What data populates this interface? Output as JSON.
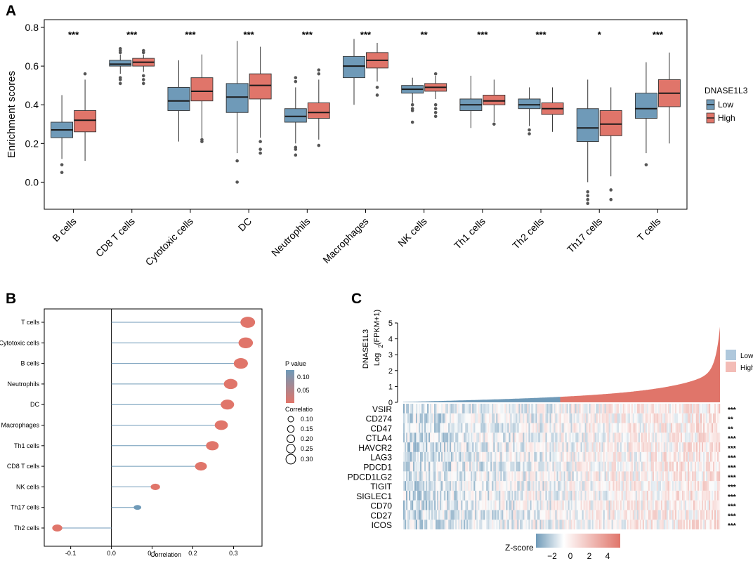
{
  "panel_labels": {
    "a": "A",
    "b": "B",
    "c": "C"
  },
  "chart_data": [
    {
      "panel": "A",
      "type": "box",
      "ylabel": "Enrichment scores",
      "ylim": [
        -0.14,
        0.84
      ],
      "yticks": [
        0.0,
        0.2,
        0.4,
        0.6,
        0.8
      ],
      "ytick_labels": [
        "0.0",
        "0.2",
        "0.4",
        "0.6",
        "0.8"
      ],
      "legend_title": "DNASE1L3",
      "legend_position": "right",
      "groups": [
        {
          "name": "Low",
          "color": "#6F9AB8"
        },
        {
          "name": "High",
          "color": "#E0756A"
        }
      ],
      "categories": [
        "B cells",
        "CD8 T cells",
        "Cytotoxic cells",
        "DC",
        "Neutrophils",
        "Macrophages",
        "NK cells",
        "Th1 cells",
        "Th2 cells",
        "Th17 cells",
        "T cells"
      ],
      "significance": [
        "***",
        "***",
        "***",
        "***",
        "***",
        "***",
        "**",
        "***",
        "***",
        "*",
        "***"
      ],
      "boxes": [
        {
          "low": {
            "q1": 0.23,
            "median": 0.27,
            "q3": 0.31,
            "wlo": 0.12,
            "whi": 0.45,
            "out": [
              0.09,
              0.05
            ]
          },
          "high": {
            "q1": 0.26,
            "median": 0.32,
            "q3": 0.37,
            "wlo": 0.11,
            "whi": 0.53,
            "out": [
              0.56
            ]
          }
        },
        {
          "low": {
            "q1": 0.6,
            "median": 0.61,
            "q3": 0.63,
            "wlo": 0.56,
            "whi": 0.66,
            "out": [
              0.69,
              0.68,
              0.67,
              0.54,
              0.53,
              0.51
            ]
          },
          "high": {
            "q1": 0.6,
            "median": 0.62,
            "q3": 0.64,
            "wlo": 0.57,
            "whi": 0.66,
            "out": [
              0.68,
              0.67,
              0.55,
              0.53,
              0.51
            ]
          }
        },
        {
          "low": {
            "q1": 0.37,
            "median": 0.42,
            "q3": 0.49,
            "wlo": 0.21,
            "whi": 0.63,
            "out": []
          },
          "high": {
            "q1": 0.42,
            "median": 0.47,
            "q3": 0.54,
            "wlo": 0.23,
            "whi": 0.66,
            "out": [
              0.22,
              0.21
            ]
          }
        },
        {
          "low": {
            "q1": 0.36,
            "median": 0.44,
            "q3": 0.51,
            "wlo": 0.15,
            "whi": 0.73,
            "out": [
              0.11,
              0.0
            ]
          },
          "high": {
            "q1": 0.43,
            "median": 0.5,
            "q3": 0.56,
            "wlo": 0.23,
            "whi": 0.7,
            "out": [
              0.21,
              0.17,
              0.15
            ]
          }
        },
        {
          "low": {
            "q1": 0.31,
            "median": 0.34,
            "q3": 0.38,
            "wlo": 0.2,
            "whi": 0.49,
            "out": [
              0.54,
              0.52,
              0.18,
              0.17,
              0.14
            ]
          },
          "high": {
            "q1": 0.33,
            "median": 0.36,
            "q3": 0.41,
            "wlo": 0.22,
            "whi": 0.53,
            "out": [
              0.58,
              0.56,
              0.19
            ]
          }
        },
        {
          "low": {
            "q1": 0.54,
            "median": 0.6,
            "q3": 0.65,
            "wlo": 0.4,
            "whi": 0.74,
            "out": []
          },
          "high": {
            "q1": 0.59,
            "median": 0.63,
            "q3": 0.67,
            "wlo": 0.52,
            "whi": 0.72,
            "out": [
              0.49,
              0.45
            ]
          }
        },
        {
          "low": {
            "q1": 0.46,
            "median": 0.48,
            "q3": 0.5,
            "wlo": 0.41,
            "whi": 0.54,
            "out": [
              0.4,
              0.38,
              0.37,
              0.31
            ]
          },
          "high": {
            "q1": 0.47,
            "median": 0.49,
            "q3": 0.51,
            "wlo": 0.43,
            "whi": 0.55,
            "out": [
              0.56,
              0.4,
              0.38,
              0.36,
              0.34
            ]
          }
        },
        {
          "low": {
            "q1": 0.37,
            "median": 0.4,
            "q3": 0.43,
            "wlo": 0.28,
            "whi": 0.55,
            "out": []
          },
          "high": {
            "q1": 0.4,
            "median": 0.42,
            "q3": 0.45,
            "wlo": 0.31,
            "whi": 0.53,
            "out": [
              0.3
            ]
          }
        },
        {
          "low": {
            "q1": 0.38,
            "median": 0.4,
            "q3": 0.43,
            "wlo": 0.29,
            "whi": 0.49,
            "out": [
              0.27,
              0.25
            ]
          },
          "high": {
            "q1": 0.35,
            "median": 0.38,
            "q3": 0.41,
            "wlo": 0.26,
            "whi": 0.49,
            "out": []
          }
        },
        {
          "low": {
            "q1": 0.21,
            "median": 0.28,
            "q3": 0.38,
            "wlo": 0.0,
            "whi": 0.53,
            "out": [
              -0.05,
              -0.07,
              -0.09,
              -0.11
            ]
          },
          "high": {
            "q1": 0.24,
            "median": 0.3,
            "q3": 0.37,
            "wlo": 0.03,
            "whi": 0.49,
            "out": [
              -0.04,
              -0.09
            ]
          }
        },
        {
          "low": {
            "q1": 0.33,
            "median": 0.38,
            "q3": 0.46,
            "wlo": 0.15,
            "whi": 0.62,
            "out": [
              0.09
            ]
          },
          "high": {
            "q1": 0.39,
            "median": 0.46,
            "q3": 0.53,
            "wlo": 0.2,
            "whi": 0.67,
            "out": []
          }
        }
      ]
    },
    {
      "panel": "B",
      "type": "lollipop",
      "xlabel": "Correlation",
      "xlim": [
        -0.165,
        0.37
      ],
      "xticks": [
        -0.1,
        0.0,
        0.1,
        0.2,
        0.3
      ],
      "xtick_labels": [
        "-0.1",
        "0.0",
        "0.1",
        "0.2",
        "0.3"
      ],
      "categories": [
        "T cells",
        "Cytotoxic cells",
        "B cells",
        "Neutrophils",
        "DC",
        "Macrophages",
        "Th1 cells",
        "CD8 T cells",
        "NK cells",
        "Th17 cells",
        "Th2 cells"
      ],
      "values": [
        0.335,
        0.33,
        0.318,
        0.293,
        0.285,
        0.27,
        0.248,
        0.22,
        0.108,
        0.064,
        -0.133
      ],
      "sizes": [
        0.33,
        0.32,
        0.31,
        0.29,
        0.28,
        0.27,
        0.25,
        0.22,
        0.12,
        0.05,
        0.15
      ],
      "colors": [
        "#E0756A",
        "#E0756A",
        "#E0756A",
        "#E0756A",
        "#E0756A",
        "#E0756A",
        "#E0756A",
        "#E0756A",
        "#E0756A",
        "#6F9AB8",
        "#E0756A"
      ],
      "pvalue_legend": {
        "title": "P value",
        "labels": [
          "0.10",
          "0.05"
        ],
        "colors": [
          "#6F9AB8",
          "#E0756A"
        ]
      },
      "size_legend": {
        "title": "Correlatio",
        "labels": [
          "0.10",
          "0.15",
          "0.20",
          "0.25",
          "0.30"
        ]
      }
    },
    {
      "panel": "C",
      "type": "heatmap",
      "bar_ylabel_line1": "DNASE1L3",
      "bar_ylabel_line2": "Log",
      "bar_ylabel_sub": "2",
      "bar_ylabel_line3": "(FPKM+1)",
      "bar_ylim": [
        0,
        5
      ],
      "bar_yticks": [
        "0",
        "1",
        "2",
        "3",
        "4",
        "5"
      ],
      "groups": [
        {
          "name": "Low",
          "color": "#AFC8DC"
        },
        {
          "name": "High",
          "color": "#F3BCB6"
        }
      ],
      "genes": [
        "VSIR",
        "CD274",
        "CD47",
        "CTLA4",
        "HAVCR2",
        "LAG3",
        "PDCD1",
        "PDCD1LG2",
        "TIGIT",
        "SIGLEC1",
        "CD70",
        "CD27",
        "ICOS"
      ],
      "significance": [
        "***",
        "**",
        "**",
        "***",
        "***",
        "***",
        "***",
        "***",
        "***",
        "***",
        "***",
        "***",
        "***"
      ],
      "colorbar_title": "Z-score",
      "colorbar_ticks": [
        "−2",
        "0",
        "2",
        "4"
      ]
    }
  ]
}
